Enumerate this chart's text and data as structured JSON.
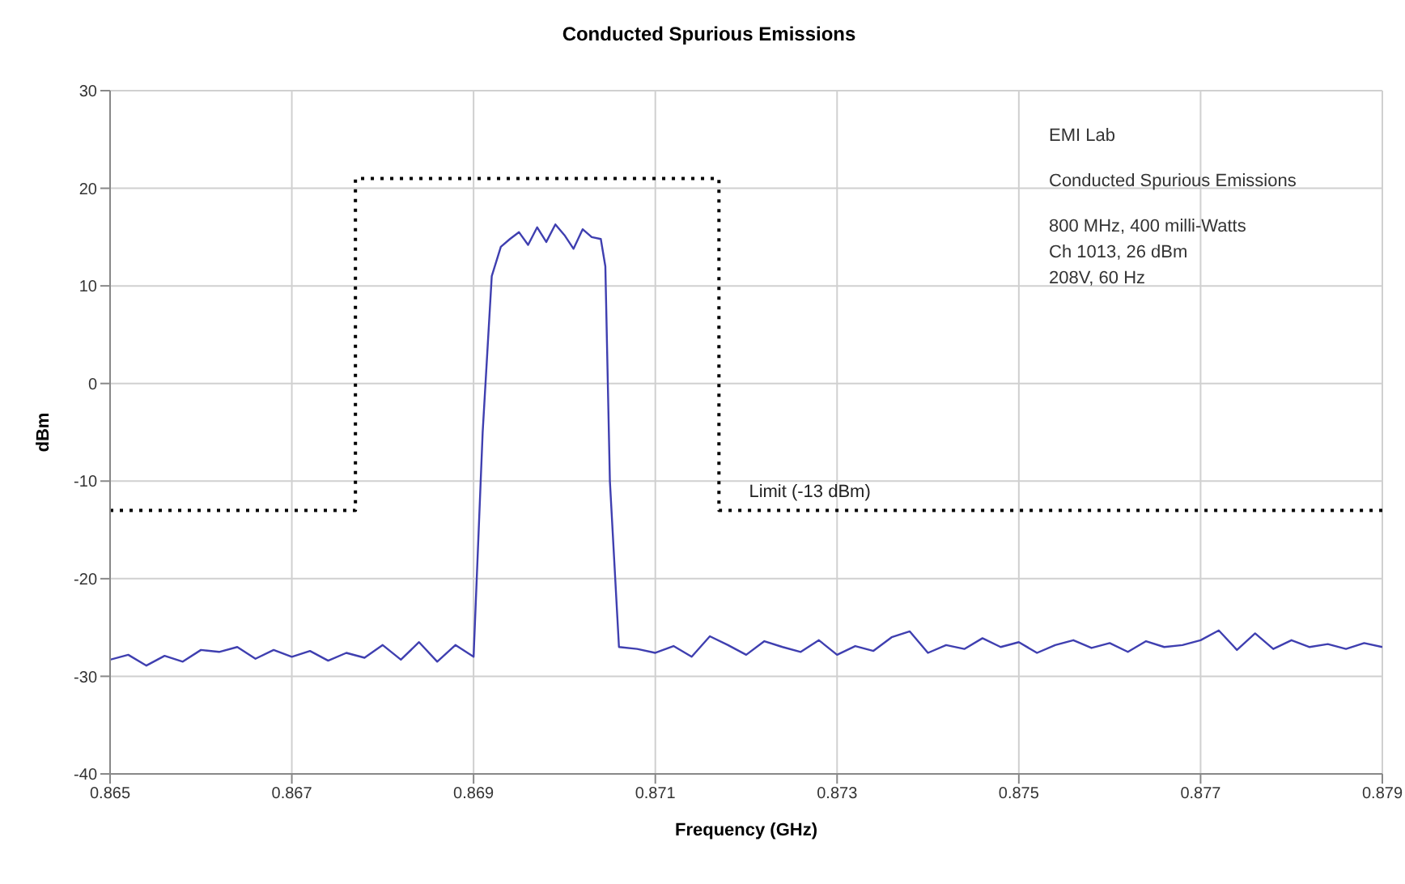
{
  "chart_data": {
    "type": "line",
    "title": "Conducted Spurious Emissions",
    "xlabel": "Frequency (GHz)",
    "ylabel": "dBm",
    "xlim": [
      0.865,
      0.879
    ],
    "xticks": [
      0.865,
      0.867,
      0.869,
      0.871,
      0.873,
      0.875,
      0.877,
      0.879
    ],
    "ylim": [
      -40,
      30
    ],
    "yticks": [
      -40,
      -30,
      -20,
      -10,
      0,
      10,
      20,
      30
    ],
    "grid": true,
    "legend": false,
    "series": [
      {
        "color": "#3f3fb0",
        "line_style": "solid",
        "x": [
          0.865,
          0.8652,
          0.8654,
          0.8656,
          0.8658,
          0.866,
          0.8662,
          0.8664,
          0.8666,
          0.8668,
          0.867,
          0.8672,
          0.8674,
          0.8676,
          0.8678,
          0.868,
          0.8682,
          0.8684,
          0.8686,
          0.8688,
          0.869,
          0.8691,
          0.8692,
          0.8693,
          0.8694,
          0.8695,
          0.8696,
          0.8697,
          0.8698,
          0.8699,
          0.87,
          0.8701,
          0.8702,
          0.8703,
          0.8704,
          0.87045,
          0.8705,
          0.8706,
          0.8708,
          0.871,
          0.8712,
          0.8714,
          0.8716,
          0.8718,
          0.872,
          0.8722,
          0.8724,
          0.8726,
          0.8728,
          0.873,
          0.8732,
          0.8734,
          0.8736,
          0.8738,
          0.874,
          0.8742,
          0.8744,
          0.8746,
          0.8748,
          0.875,
          0.8752,
          0.8754,
          0.8756,
          0.8758,
          0.876,
          0.8762,
          0.8764,
          0.8766,
          0.8768,
          0.877,
          0.8772,
          0.8774,
          0.8776,
          0.8778,
          0.878,
          0.8782,
          0.8784,
          0.8786,
          0.8788,
          0.879
        ],
        "values": [
          -28.3,
          -27.8,
          -28.9,
          -27.9,
          -28.5,
          -27.3,
          -27.5,
          -27.0,
          -28.2,
          -27.3,
          -28.0,
          -27.4,
          -28.4,
          -27.6,
          -28.1,
          -26.8,
          -28.3,
          -26.5,
          -28.5,
          -26.8,
          -28.0,
          -5,
          11,
          14,
          14.8,
          15.5,
          14.2,
          16,
          14.5,
          16.3,
          15.2,
          13.8,
          15.8,
          15,
          14.8,
          12,
          -10,
          -27,
          -27.2,
          -27.6,
          -26.9,
          -28.0,
          -25.9,
          -26.8,
          -27.8,
          -26.4,
          -27.0,
          -27.5,
          -26.3,
          -27.8,
          -26.9,
          -27.4,
          -26.0,
          -25.4,
          -27.6,
          -26.8,
          -27.2,
          -26.1,
          -27.0,
          -26.5,
          -27.6,
          -26.8,
          -26.3,
          -27.1,
          -26.6,
          -27.5,
          -26.4,
          -27.0,
          -26.8,
          -26.3,
          -25.3,
          -27.3,
          -25.6,
          -27.2,
          -26.3,
          -27.0,
          -26.7,
          -27.2,
          -26.6,
          -27.0
        ]
      },
      {
        "color": "#000000",
        "line_style": "dotted",
        "x": [
          0.865,
          0.8677,
          0.8677,
          0.8717,
          0.8717,
          0.879
        ],
        "values": [
          -13,
          -13,
          21,
          21,
          -13,
          -13
        ]
      }
    ],
    "annotations": [
      "EMI Lab",
      "Conducted Spurious Emissions",
      "800 MHz, 400 milli-Watts",
      "Ch 1013, 26 dBm",
      "208V, 60 Hz",
      {
        "text": "Limit (-13 dBm)",
        "x": 0.8727,
        "y": -13
      }
    ]
  }
}
